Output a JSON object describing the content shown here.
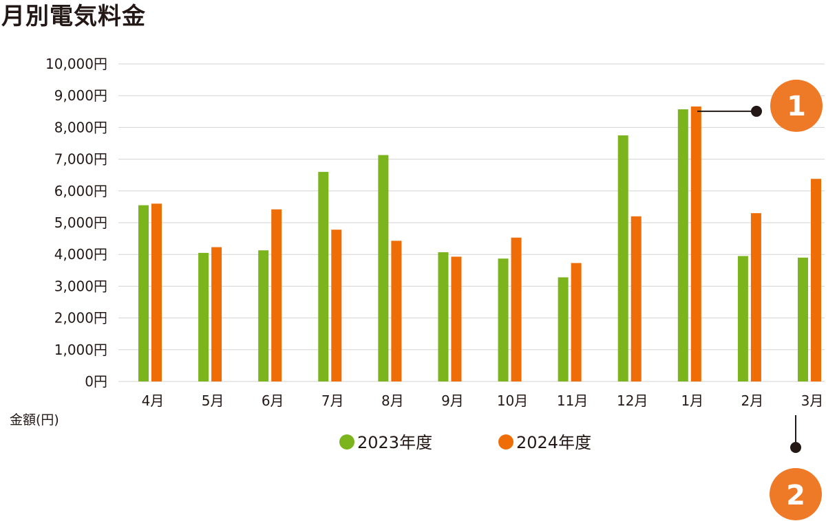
{
  "chart_data": {
    "type": "bar",
    "title": "月別電気料金",
    "ylabel": "金額(円)",
    "ylim": [
      0,
      10000
    ],
    "yticks": [
      "0円",
      "1,000円",
      "2,000円",
      "3,000円",
      "4,000円",
      "5,000円",
      "6,000円",
      "7,000円",
      "8,000円",
      "9,000円",
      "10,000円"
    ],
    "categories": [
      "4月",
      "5月",
      "6月",
      "7月",
      "8月",
      "9月",
      "10月",
      "11月",
      "12月",
      "1月",
      "2月",
      "3月"
    ],
    "series": [
      {
        "name": "2023年度",
        "color": "#7cb41e",
        "values": [
          5550,
          4050,
          4130,
          6600,
          7130,
          4070,
          3870,
          3280,
          7750,
          8570,
          3950,
          3900
        ]
      },
      {
        "name": "2024年度",
        "color": "#ee6d06",
        "values": [
          5600,
          4230,
          5420,
          4780,
          4430,
          3930,
          4530,
          3730,
          5200,
          8660,
          5300,
          6380
        ]
      }
    ],
    "grid": true,
    "legend": "bottom-center",
    "callouts": [
      {
        "label": "1",
        "category": "1月",
        "color": "#ee7a28"
      },
      {
        "label": "2",
        "category": "3月",
        "color": "#ee7a28"
      }
    ]
  }
}
